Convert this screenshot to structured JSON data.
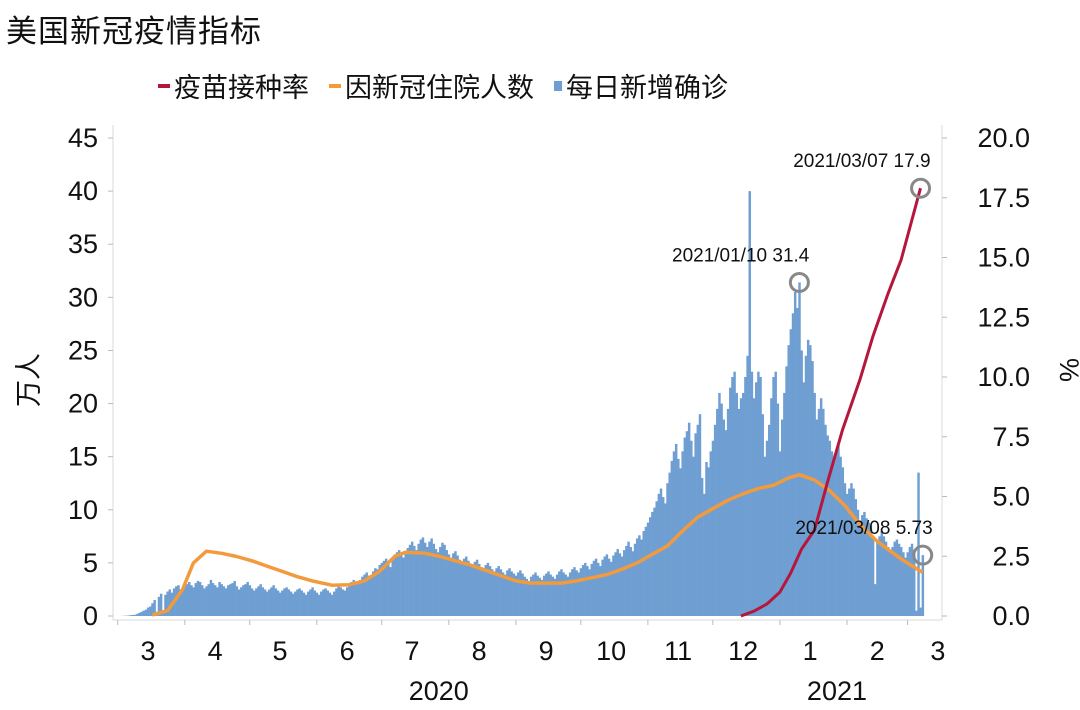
{
  "title": "美国新冠疫情指标",
  "chart_data": {
    "type": "bar+line",
    "title": "美国新冠疫情指标",
    "legend_placement": "top",
    "colors": {
      "vaccination": "#b5173c",
      "hospitalized": "#f39a3c",
      "daily_cases": "#6f9fd2"
    },
    "legend": [
      {
        "key": "vaccination",
        "label": "疫苗接种率",
        "marker": "line"
      },
      {
        "key": "hospitalized",
        "label": "因新冠住院人数",
        "marker": "line"
      },
      {
        "key": "daily_cases",
        "label": "每日新增确诊",
        "marker": "box"
      }
    ],
    "y_left": {
      "label": "万人",
      "range": [
        0,
        45
      ],
      "ticks": [
        "0",
        "5",
        "10",
        "15",
        "20",
        "25",
        "30",
        "35",
        "40",
        "45"
      ]
    },
    "y_right": {
      "label": "%",
      "range": [
        0,
        20
      ],
      "ticks": [
        "0.0",
        "2.5",
        "5.0",
        "7.5",
        "10.0",
        "12.5",
        "15.0",
        "17.5",
        "20.0"
      ]
    },
    "x_ticks": [
      {
        "label": "3",
        "month": "2020-03"
      },
      {
        "label": "4",
        "month": "2020-04"
      },
      {
        "label": "5",
        "month": "2020-05"
      },
      {
        "label": "6",
        "month": "2020-06"
      },
      {
        "label": "7",
        "month": "2020-07"
      },
      {
        "label": "8",
        "month": "2020-08"
      },
      {
        "label": "9",
        "month": "2020-09"
      },
      {
        "label": "10",
        "month": "2020-10"
      },
      {
        "label": "11",
        "month": "2020-11"
      },
      {
        "label": "12",
        "month": "2020-12"
      },
      {
        "label": "1",
        "month": "2021-01"
      },
      {
        "label": "2",
        "month": "2021-02"
      },
      {
        "label": "3",
        "month": "2021-03"
      }
    ],
    "x_years": [
      {
        "label": "2020",
        "month": "2020-08"
      },
      {
        "label": "2021",
        "month": "2021-02"
      }
    ],
    "daily_cases_by_month": {
      "2020-03": [
        0,
        0,
        0.01,
        0.02,
        0.03,
        0.05,
        0.08,
        0.1,
        0.12,
        0.2,
        0.3,
        0.4,
        0.5,
        0.6,
        0.8,
        0.9,
        1.2,
        1.5,
        0.4,
        1.8,
        2.1,
        0.5,
        2.0,
        2.3,
        2.5,
        2.2,
        2.6,
        2.8,
        2.9,
        2.5,
        2.7
      ],
      "2020-04": [
        2.8,
        3.0,
        3.2,
        2.9,
        2.7,
        3.1,
        3.3,
        3.2,
        2.9,
        2.6,
        2.8,
        3.0,
        3.4,
        3.1,
        2.9,
        2.7,
        3.2,
        3.0,
        2.8,
        2.6,
        2.9,
        3.0,
        3.1,
        3.3,
        2.8,
        2.5,
        2.7,
        2.9,
        3.0,
        3.2
      ],
      "2020-05": [
        2.9,
        2.6,
        2.4,
        2.6,
        2.8,
        3.0,
        2.7,
        2.5,
        2.3,
        2.5,
        2.7,
        2.9,
        2.6,
        2.4,
        2.2,
        2.4,
        2.6,
        2.7,
        2.5,
        2.3,
        2.1,
        2.3,
        2.5,
        2.6,
        2.4,
        2.2,
        2.0,
        2.3,
        2.5,
        2.7,
        2.4
      ],
      "2020-06": [
        2.2,
        2.0,
        2.3,
        2.5,
        2.6,
        2.4,
        2.2,
        2.0,
        2.3,
        2.6,
        2.8,
        2.7,
        2.5,
        2.4,
        2.7,
        3.0,
        3.2,
        3.4,
        3.1,
        3.0,
        3.4,
        3.7,
        3.9,
        4.1,
        3.8,
        3.6,
        4.2,
        4.5,
        4.4,
        4.8
      ],
      "2020-07": [
        5.0,
        5.2,
        5.4,
        5.0,
        4.6,
        5.3,
        5.8,
        6.0,
        6.2,
        5.7,
        5.5,
        6.1,
        6.4,
        6.7,
        7.0,
        6.6,
        6.2,
        6.8,
        7.2,
        7.4,
        6.9,
        6.5,
        7.0,
        7.3,
        6.8,
        6.3,
        6.0,
        6.5,
        6.9,
        6.7,
        6.2
      ],
      "2020-08": [
        5.8,
        5.5,
        5.9,
        6.1,
        5.7,
        5.3,
        5.0,
        5.4,
        5.6,
        5.2,
        4.9,
        4.7,
        5.1,
        5.3,
        4.9,
        4.6,
        4.4,
        4.8,
        5.0,
        4.7,
        4.4,
        4.2,
        4.5,
        4.7,
        4.4,
        4.1,
        3.9,
        4.3,
        4.5,
        4.2,
        4.0
      ],
      "2020-09": [
        3.8,
        4.1,
        4.3,
        4.0,
        3.7,
        3.5,
        3.3,
        3.7,
        3.9,
        4.1,
        3.8,
        3.6,
        3.4,
        3.8,
        4.0,
        4.2,
        3.9,
        3.7,
        3.5,
        3.9,
        4.2,
        4.4,
        4.1,
        3.9,
        3.7,
        4.1,
        4.4,
        4.6,
        4.3,
        4.1
      ],
      "2020-10": [
        4.5,
        4.8,
        5.0,
        4.7,
        4.4,
        4.9,
        5.2,
        5.4,
        5.0,
        4.7,
        5.3,
        5.6,
        5.8,
        5.4,
        5.1,
        5.7,
        6.0,
        6.3,
        5.9,
        5.6,
        6.2,
        6.6,
        7.0,
        6.5,
        6.1,
        6.8,
        7.3,
        7.6,
        7.2,
        8.0,
        8.4
      ],
      "2020-11": [
        8.8,
        9.3,
        9.8,
        10.2,
        10.8,
        11.5,
        12.0,
        11.2,
        10.6,
        12.5,
        13.5,
        14.6,
        15.5,
        16.2,
        14.8,
        13.9,
        15.5,
        16.8,
        17.4,
        18.2,
        16.5,
        15.0,
        17.2,
        18.0,
        19.0,
        13.0,
        11.5,
        14.5,
        14.0,
        15.5
      ],
      "2020-12": [
        16.5,
        18.0,
        19.5,
        21.0,
        20.0,
        18.5,
        17.5,
        19.5,
        21.5,
        22.5,
        23.0,
        21.0,
        19.5,
        20.5,
        21.0,
        22.5,
        24.5,
        40.0,
        23.0,
        20.5,
        22.0,
        23.0,
        22.5,
        19.0,
        15.0,
        16.5,
        18.0,
        20.5,
        22.5,
        23.0,
        20.0
      ],
      "2021-01": [
        15.5,
        18.5,
        21.0,
        23.5,
        25.5,
        27.0,
        28.5,
        30.5,
        29.0,
        31.4,
        25.0,
        22.0,
        24.5,
        26.0,
        25.5,
        24.0,
        21.0,
        18.5,
        19.5,
        20.5,
        19.5,
        18.0,
        17.0,
        16.5,
        15.5,
        14.5,
        15.5,
        16.0,
        15.0,
        14.0,
        12.5
      ],
      "2021-02": [
        11.5,
        12.0,
        12.5,
        12.0,
        11.0,
        10.0,
        9.0,
        9.5,
        9.8,
        9.2,
        8.8,
        8.5,
        7.5,
        3.0,
        7.0,
        7.5,
        8.0,
        7.5,
        7.0,
        6.5,
        6.0,
        6.5,
        7.0,
        7.2,
        6.8,
        6.5,
        6.0,
        5.5
      ],
      "2021-03": [
        6.0,
        6.5,
        6.8,
        6.2,
        0.5,
        13.5,
        0.8,
        5.73
      ]
    },
    "hospitalized": [
      [
        "2020-03-17",
        0.1
      ],
      [
        "2020-03-24",
        0.5
      ],
      [
        "2020-03-31",
        2.5
      ],
      [
        "2020-04-05",
        5.0
      ],
      [
        "2020-04-11",
        6.1
      ],
      [
        "2020-04-18",
        5.9
      ],
      [
        "2020-04-25",
        5.6
      ],
      [
        "2020-05-02",
        5.2
      ],
      [
        "2020-05-09",
        4.7
      ],
      [
        "2020-05-16",
        4.2
      ],
      [
        "2020-05-23",
        3.7
      ],
      [
        "2020-05-30",
        3.3
      ],
      [
        "2020-06-08",
        2.9
      ],
      [
        "2020-06-16",
        2.95
      ],
      [
        "2020-06-23",
        3.3
      ],
      [
        "2020-06-30",
        4.2
      ],
      [
        "2020-07-07",
        5.6
      ],
      [
        "2020-07-12",
        6.0
      ],
      [
        "2020-07-21",
        5.9
      ],
      [
        "2020-07-28",
        5.6
      ],
      [
        "2020-08-04",
        5.2
      ],
      [
        "2020-08-11",
        4.8
      ],
      [
        "2020-08-18",
        4.3
      ],
      [
        "2020-08-25",
        3.8
      ],
      [
        "2020-09-01",
        3.3
      ],
      [
        "2020-09-08",
        3.1
      ],
      [
        "2020-09-15",
        3.1
      ],
      [
        "2020-09-22",
        3.1
      ],
      [
        "2020-09-29",
        3.3
      ],
      [
        "2020-10-06",
        3.6
      ],
      [
        "2020-10-13",
        3.9
      ],
      [
        "2020-10-20",
        4.4
      ],
      [
        "2020-10-27",
        5.0
      ],
      [
        "2020-11-03",
        5.8
      ],
      [
        "2020-11-10",
        6.6
      ],
      [
        "2020-11-17",
        8.0
      ],
      [
        "2020-11-24",
        9.3
      ],
      [
        "2020-12-01",
        10.1
      ],
      [
        "2020-12-08",
        10.9
      ],
      [
        "2020-12-15",
        11.5
      ],
      [
        "2020-12-22",
        12.0
      ],
      [
        "2020-12-29",
        12.3
      ],
      [
        "2021-01-05",
        13.0
      ],
      [
        "2021-01-10",
        13.3
      ],
      [
        "2021-01-17",
        12.8
      ],
      [
        "2021-01-24",
        11.8
      ],
      [
        "2021-01-31",
        10.4
      ],
      [
        "2021-02-07",
        8.6
      ],
      [
        "2021-02-14",
        7.2
      ],
      [
        "2021-02-21",
        6.1
      ],
      [
        "2021-02-28",
        5.1
      ],
      [
        "2021-03-08",
        4.1
      ]
    ],
    "vaccination": [
      [
        "2020-12-14",
        0.0
      ],
      [
        "2020-12-20",
        0.2
      ],
      [
        "2020-12-26",
        0.5
      ],
      [
        "2021-01-01",
        1.0
      ],
      [
        "2021-01-06",
        1.8
      ],
      [
        "2021-01-11",
        2.8
      ],
      [
        "2021-01-17",
        3.6
      ],
      [
        "2021-01-23",
        5.6
      ],
      [
        "2021-01-30",
        7.8
      ],
      [
        "2021-02-07",
        9.9
      ],
      [
        "2021-02-13",
        11.7
      ],
      [
        "2021-02-20",
        13.5
      ],
      [
        "2021-02-26",
        14.9
      ],
      [
        "2021-03-07",
        17.9
      ]
    ],
    "annotations": [
      {
        "text": "2021/01/10 31.4",
        "date": "2021-01-10",
        "value": 31.4,
        "axis": "left"
      },
      {
        "text": "2021/03/07 17.9",
        "date": "2021-03-07",
        "value": 17.9,
        "axis": "right"
      },
      {
        "text": "2021/03/08 5.73",
        "date": "2021-03-08",
        "value": 5.73,
        "axis": "left"
      }
    ]
  }
}
